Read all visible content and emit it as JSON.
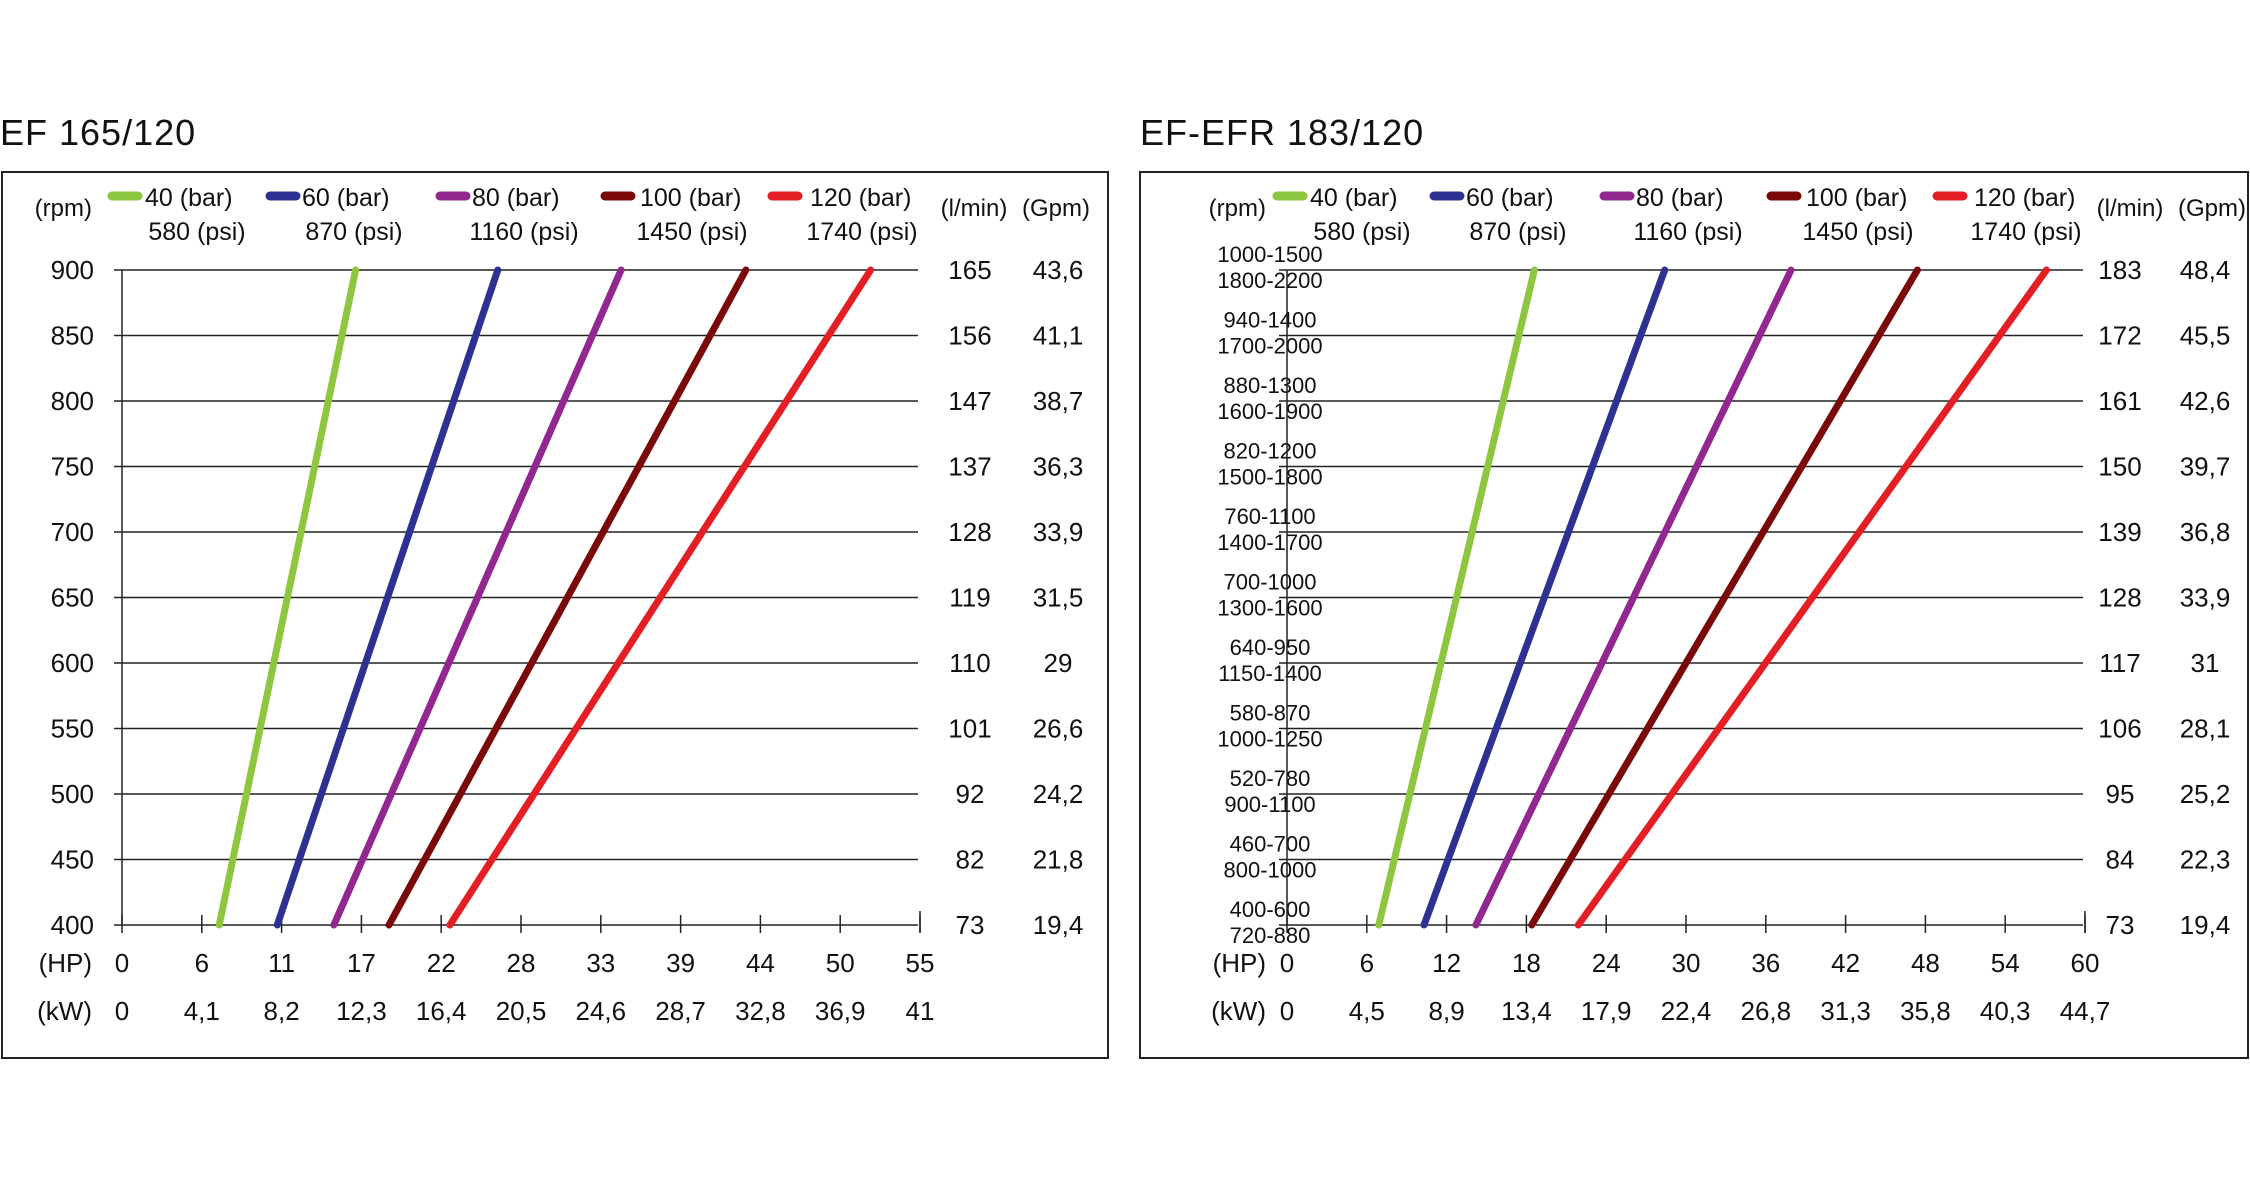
{
  "charts": [
    {
      "title": "EF 165/120",
      "header": {
        "rpm": "(rpm)",
        "lmin": "(l/min)",
        "gpm": "(Gpm)"
      },
      "row_labels": [
        "900",
        "850",
        "800",
        "750",
        "700",
        "650",
        "600",
        "550",
        "500",
        "450",
        "400"
      ],
      "lmin": [
        "165",
        "156",
        "147",
        "137",
        "128",
        "119",
        "110",
        "101",
        "92",
        "82",
        "73"
      ],
      "gpm": [
        "43,6",
        "41,1",
        "38,7",
        "36,3",
        "33,9",
        "31,5",
        "29",
        "26,6",
        "24,2",
        "21,8",
        "19,4"
      ],
      "hp_label": "(HP)",
      "kw_label": "(kW)",
      "hp_ticks": [
        "0",
        "6",
        "11",
        "17",
        "22",
        "28",
        "33",
        "39",
        "44",
        "50",
        "55"
      ],
      "kw_ticks": [
        "0",
        "4,1",
        "8,2",
        "12,3",
        "16,4",
        "20,5",
        "24,6",
        "28,7",
        "32,8",
        "36,9",
        "41"
      ]
    },
    {
      "title": "EF-EFR 183/120",
      "header": {
        "rpm": "(rpm)",
        "lmin": "(l/min)",
        "gpm": "(Gpm)"
      },
      "row_labels": [
        [
          "1000-1500",
          "1800-2200"
        ],
        [
          "940-1400",
          "1700-2000"
        ],
        [
          "880-1300",
          "1600-1900"
        ],
        [
          "820-1200",
          "1500-1800"
        ],
        [
          "760-1100",
          "1400-1700"
        ],
        [
          "700-1000",
          "1300-1600"
        ],
        [
          "640-950",
          "1150-1400"
        ],
        [
          "580-870",
          "1000-1250"
        ],
        [
          "520-780",
          "900-1100"
        ],
        [
          "460-700",
          "800-1000"
        ],
        [
          "400-600",
          "720-880"
        ]
      ],
      "lmin": [
        "183",
        "172",
        "161",
        "150",
        "139",
        "128",
        "117",
        "106",
        "95",
        "84",
        "73"
      ],
      "gpm": [
        "48,4",
        "45,5",
        "42,6",
        "39,7",
        "36,8",
        "33,9",
        "31",
        "28,1",
        "25,2",
        "22,3",
        "19,4"
      ],
      "hp_label": "(HP)",
      "kw_label": "(kW)",
      "hp_ticks": [
        "0",
        "6",
        "12",
        "18",
        "24",
        "30",
        "36",
        "42",
        "48",
        "54",
        "60"
      ],
      "kw_ticks": [
        "0",
        "4,5",
        "8,9",
        "13,4",
        "17,9",
        "22,4",
        "26,8",
        "31,3",
        "35,8",
        "40,3",
        "44,7"
      ]
    }
  ],
  "chart_data": [
    {
      "type": "line",
      "title": "EF 165/120",
      "xlabel": "(HP)",
      "ylabel": "(rpm)",
      "xlim": [
        0,
        55
      ],
      "ylim": [
        400,
        900
      ],
      "series": [
        {
          "name": "40 (bar) 580 (psi)",
          "color": "#8dc63f",
          "x": [
            6.7,
            16.1
          ],
          "y": [
            400,
            900
          ]
        },
        {
          "name": "60 (bar) 870 (psi)",
          "color": "#2e3192",
          "x": [
            10.7,
            25.9
          ],
          "y": [
            400,
            900
          ]
        },
        {
          "name": "80 (bar) 1160 (psi)",
          "color": "#92278f",
          "x": [
            14.6,
            34.4
          ],
          "y": [
            400,
            900
          ]
        },
        {
          "name": "100 (bar) 1450 (psi)",
          "color": "#7a0a0a",
          "x": [
            18.4,
            43.0
          ],
          "y": [
            400,
            900
          ]
        },
        {
          "name": "120 (bar) 1740 (psi)",
          "color": "#e31e24",
          "x": [
            22.6,
            51.6
          ],
          "y": [
            400,
            900
          ]
        }
      ]
    },
    {
      "type": "line",
      "title": "EF-EFR 183/120",
      "xlabel": "(HP)",
      "ylabel": "(rpm)",
      "xlim": [
        0,
        60
      ],
      "ylim": [
        400,
        900
      ],
      "series": [
        {
          "name": "40 (bar) 580 (psi)",
          "color": "#8dc63f",
          "x": [
            6.9,
            18.6
          ],
          "y": [
            400,
            900
          ]
        },
        {
          "name": "60 (bar) 870 (psi)",
          "color": "#2e3192",
          "x": [
            10.3,
            28.4
          ],
          "y": [
            400,
            900
          ]
        },
        {
          "name": "80 (bar) 1160 (psi)",
          "color": "#92278f",
          "x": [
            14.2,
            37.9
          ],
          "y": [
            400,
            900
          ]
        },
        {
          "name": "100 (bar) 1450 (psi)",
          "color": "#7a0a0a",
          "x": [
            18.4,
            47.4
          ],
          "y": [
            400,
            900
          ]
        },
        {
          "name": "120 (bar) 1740 (psi)",
          "color": "#e31e24",
          "x": [
            21.9,
            57.1
          ],
          "y": [
            400,
            900
          ]
        }
      ]
    }
  ]
}
